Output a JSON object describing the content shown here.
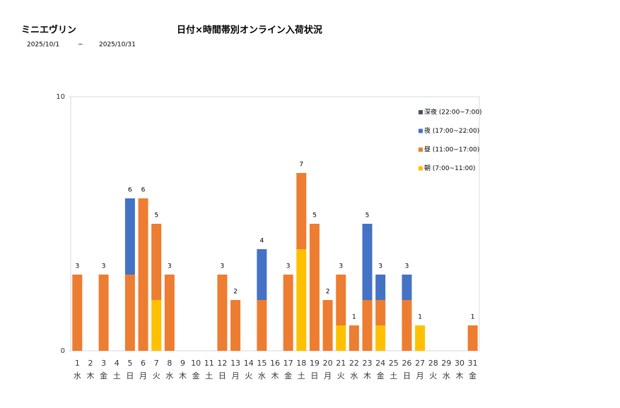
{
  "header": {
    "shop": "ミニエヴリン",
    "from": "2025/10/1",
    "sep": "~",
    "to": "2025/10/31"
  },
  "chart_data": {
    "type": "stacked_bar",
    "title": "日付×時間帯別オンライン入荷状況",
    "categories": [
      "1",
      "2",
      "3",
      "4",
      "5",
      "6",
      "7",
      "8",
      "9",
      "10",
      "11",
      "12",
      "13",
      "14",
      "15",
      "16",
      "17",
      "18",
      "19",
      "20",
      "21",
      "22",
      "23",
      "24",
      "25",
      "26",
      "27",
      "28",
      "29",
      "30",
      "31"
    ],
    "weekdays": [
      "水",
      "木",
      "金",
      "土",
      "日",
      "月",
      "火",
      "水",
      "木",
      "金",
      "土",
      "日",
      "月",
      "火",
      "水",
      "木",
      "金",
      "土",
      "日",
      "月",
      "火",
      "水",
      "木",
      "金",
      "土",
      "日",
      "月",
      "火",
      "水",
      "木",
      "金"
    ],
    "series": [
      {
        "name": "深夜 (22:00~7:00)",
        "color": "#44546a",
        "values": [
          0,
          0,
          0,
          0,
          0,
          0,
          0,
          0,
          0,
          0,
          0,
          0,
          0,
          0,
          0,
          0,
          0,
          0,
          0,
          0,
          0,
          0,
          0,
          0,
          0,
          0,
          0,
          0,
          0,
          0,
          0
        ]
      },
      {
        "name": "夜 (17:00~22:00)",
        "color": "#4472c4",
        "values": [
          0,
          0,
          0,
          0,
          3,
          0,
          0,
          0,
          0,
          0,
          0,
          0,
          0,
          0,
          2,
          0,
          0,
          0,
          0,
          0,
          0,
          0,
          3,
          1,
          0,
          1,
          0,
          0,
          0,
          0,
          0
        ]
      },
      {
        "name": "昼 (11:00~17:00)",
        "color": "#ed7d31",
        "values": [
          3,
          0,
          3,
          0,
          3,
          6,
          3,
          3,
          0,
          0,
          0,
          3,
          2,
          0,
          2,
          0,
          3,
          3,
          5,
          2,
          2,
          1,
          2,
          1,
          0,
          2,
          0,
          0,
          0,
          0,
          1
        ]
      },
      {
        "name": "朝 (7:00~11:00)",
        "color": "#ffc000",
        "values": [
          0,
          0,
          0,
          0,
          0,
          0,
          2,
          0,
          0,
          0,
          0,
          0,
          0,
          0,
          0,
          0,
          0,
          4,
          0,
          0,
          1,
          0,
          0,
          1,
          0,
          0,
          1,
          0,
          0,
          0,
          0
        ]
      }
    ],
    "totals": [
      3,
      null,
      3,
      null,
      6,
      6,
      5,
      3,
      null,
      null,
      null,
      3,
      2,
      null,
      4,
      null,
      3,
      7,
      5,
      2,
      3,
      1,
      5,
      3,
      null,
      3,
      1,
      null,
      null,
      null,
      1
    ],
    "ylim": [
      0,
      10
    ],
    "yticks": [
      0,
      10
    ],
    "legend": "upper right"
  }
}
